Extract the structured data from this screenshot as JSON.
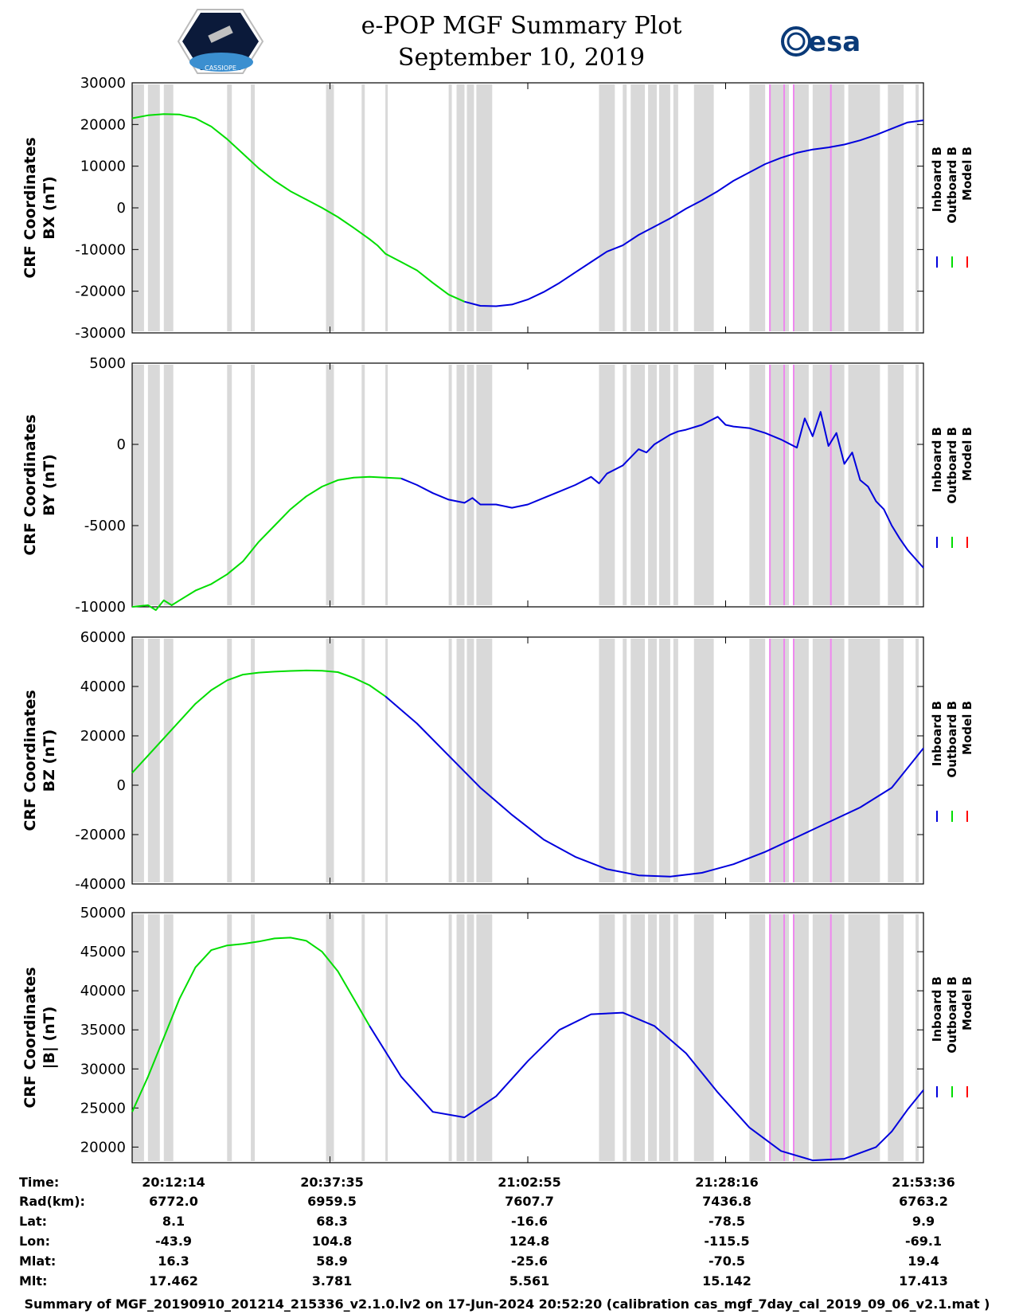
{
  "header": {
    "title": "e-POP MGF Summary Plot",
    "date": "September 10, 2019",
    "logo_left_text": "CASSIOPE",
    "logo_right_text": "esa"
  },
  "legend": {
    "items": [
      {
        "label": "Inboard B",
        "color": "#0000dd"
      },
      {
        "label": "Outboard B",
        "color": "#00dd00"
      },
      {
        "label": "Model B",
        "color": "#ff0000"
      }
    ]
  },
  "colors": {
    "gap": "#d9d9d9",
    "marker": "#ee88ee"
  },
  "chart_data": [
    {
      "type": "line",
      "ylabel": "CRF Coordinates",
      "ylabel2": "BX (nT)",
      "ylim": [
        -30000,
        30000
      ],
      "yticks": [
        "30000",
        "20000",
        "10000",
        "0",
        "-10000",
        "-20000",
        "-30000"
      ],
      "xlim": [
        0,
        100
      ],
      "series": [
        {
          "name": "Outboard B",
          "x": [
            0,
            2,
            4,
            6,
            8,
            10,
            12,
            14,
            16,
            18,
            20,
            22,
            24,
            26,
            28,
            30,
            31,
            32,
            34,
            36,
            38,
            40,
            42
          ],
          "values": [
            21500,
            22200,
            22500,
            22400,
            21500,
            19500,
            16500,
            13000,
            9500,
            6500,
            4000,
            2000,
            0,
            -2200,
            -4800,
            -7500,
            -9000,
            -11000,
            -13000,
            -15000,
            -18000,
            -20800,
            -22500
          ]
        },
        {
          "name": "Inboard B",
          "x": [
            42,
            44,
            46,
            48,
            50,
            52,
            54,
            56,
            58,
            60,
            62,
            64,
            66,
            68,
            70,
            72,
            74,
            76,
            78,
            80,
            82,
            84,
            86,
            88,
            90,
            92,
            94,
            96,
            98,
            100
          ],
          "values": [
            -22500,
            -23500,
            -23600,
            -23200,
            -22000,
            -20200,
            -18000,
            -15500,
            -13000,
            -10500,
            -9000,
            -6500,
            -4500,
            -2500,
            -200,
            1800,
            4000,
            6500,
            8500,
            10500,
            12000,
            13200,
            14000,
            14500,
            15200,
            16200,
            17500,
            19000,
            20500,
            21000
          ]
        }
      ]
    },
    {
      "type": "line",
      "ylabel": "CRF Coordinates",
      "ylabel2": "BY (nT)",
      "ylim": [
        -10000,
        5000
      ],
      "yticks": [
        "5000",
        "0",
        "-5000",
        "-10000"
      ],
      "xlim": [
        0,
        100
      ],
      "series": [
        {
          "name": "Outboard B",
          "x": [
            0,
            2,
            3,
            4,
            5,
            6,
            8,
            10,
            12,
            14,
            16,
            18,
            20,
            22,
            24,
            26,
            28,
            30,
            32,
            34
          ],
          "values": [
            -10000,
            -9900,
            -10200,
            -9600,
            -9900,
            -9600,
            -9000,
            -8600,
            -8000,
            -7200,
            -6000,
            -5000,
            -4000,
            -3200,
            -2600,
            -2200,
            -2050,
            -2000,
            -2050,
            -2100
          ]
        },
        {
          "name": "Inboard B",
          "x": [
            34,
            36,
            38,
            40,
            42,
            43,
            44,
            46,
            48,
            50,
            52,
            54,
            56,
            58,
            59,
            60,
            62,
            63,
            64,
            65,
            66,
            67,
            68,
            69,
            70,
            72,
            74,
            75,
            76,
            78,
            80,
            82,
            84,
            85,
            86,
            87,
            88,
            89,
            90,
            91,
            92,
            93,
            94,
            95,
            96,
            97,
            98,
            100
          ],
          "values": [
            -2100,
            -2500,
            -3000,
            -3400,
            -3600,
            -3300,
            -3700,
            -3700,
            -3900,
            -3700,
            -3300,
            -2900,
            -2500,
            -2000,
            -2400,
            -1800,
            -1300,
            -800,
            -300,
            -500,
            0,
            300,
            600,
            800,
            900,
            1200,
            1700,
            1200,
            1100,
            1000,
            700,
            300,
            -200,
            1600,
            500,
            2000,
            -100,
            700,
            -1200,
            -500,
            -2200,
            -2600,
            -3500,
            -4000,
            -5000,
            -5800,
            -6500,
            -7600
          ]
        }
      ]
    },
    {
      "type": "line",
      "ylabel": "CRF Coordinates",
      "ylabel2": "BZ (nT)",
      "ylim": [
        -40000,
        60000
      ],
      "yticks": [
        "60000",
        "40000",
        "20000",
        "0",
        "-20000",
        "-40000"
      ],
      "xlim": [
        0,
        100
      ],
      "series": [
        {
          "name": "Outboard B",
          "x": [
            0,
            2,
            4,
            6,
            8,
            10,
            12,
            14,
            16,
            18,
            20,
            22,
            24,
            26,
            28,
            30,
            32
          ],
          "values": [
            5000,
            12000,
            19000,
            26000,
            33000,
            38500,
            42500,
            44800,
            45600,
            46000,
            46300,
            46500,
            46400,
            45800,
            43500,
            40500,
            36000
          ]
        },
        {
          "name": "Inboard B",
          "x": [
            32,
            36,
            40,
            44,
            48,
            52,
            56,
            60,
            64,
            68,
            72,
            76,
            80,
            84,
            88,
            92,
            96,
            100
          ],
          "values": [
            36000,
            25000,
            12000,
            -1000,
            -12000,
            -22000,
            -29000,
            -34000,
            -36500,
            -37000,
            -35500,
            -32000,
            -27000,
            -21000,
            -15000,
            -9000,
            -1000,
            15000
          ]
        }
      ]
    },
    {
      "type": "line",
      "ylabel": "CRF Coordinates",
      "ylabel2": "|B| (nT)",
      "ylim": [
        18000,
        50000
      ],
      "yticks": [
        "50000",
        "45000",
        "40000",
        "35000",
        "30000",
        "25000",
        "20000"
      ],
      "xlim": [
        0,
        100
      ],
      "series": [
        {
          "name": "Outboard B",
          "x": [
            0,
            2,
            4,
            6,
            8,
            10,
            12,
            14,
            16,
            18,
            20,
            22,
            24,
            26,
            28,
            30
          ],
          "values": [
            24500,
            29000,
            34000,
            39000,
            43000,
            45200,
            45800,
            46000,
            46300,
            46700,
            46800,
            46400,
            45000,
            42500,
            39000,
            35500
          ]
        },
        {
          "name": "Inboard B",
          "x": [
            30,
            34,
            38,
            42,
            46,
            50,
            54,
            58,
            62,
            66,
            70,
            74,
            78,
            82,
            86,
            90,
            94,
            96,
            98,
            100
          ],
          "values": [
            35500,
            29000,
            24500,
            23800,
            26500,
            31000,
            35000,
            37000,
            37200,
            35500,
            32000,
            27000,
            22500,
            19500,
            18300,
            18500,
            20000,
            22000,
            24800,
            27300
          ]
        }
      ]
    }
  ],
  "xticks": [
    "20:12:14",
    "20:37:35",
    "21:02:55",
    "21:28:16",
    "21:53:36"
  ],
  "info": {
    "labels": [
      "Time:",
      "Rad(km):",
      "Lat:",
      "Lon:",
      "Mlat:",
      "Mlt:"
    ],
    "rows": [
      [
        "",
        "6772.0",
        "6959.5",
        "7607.7",
        "7436.8",
        "6763.2"
      ],
      [
        "",
        "8.1",
        "68.3",
        "-16.6",
        "-78.5",
        "9.9"
      ],
      [
        "",
        "-43.9",
        "104.8",
        "124.8",
        "-115.5",
        "-69.1"
      ],
      [
        "",
        "16.3",
        "58.9",
        "-25.6",
        "-70.5",
        "19.4"
      ],
      [
        "",
        "17.462",
        "3.781",
        "5.561",
        "15.142",
        "17.413"
      ]
    ]
  },
  "footer": "Summary of MGF_20190910_201214_215336_v2.1.0.lv2 on 17-Jun-2024 20:52:20 (calibration cas_mgf_7day_cal_2019_09_06_v2.1.mat )"
}
